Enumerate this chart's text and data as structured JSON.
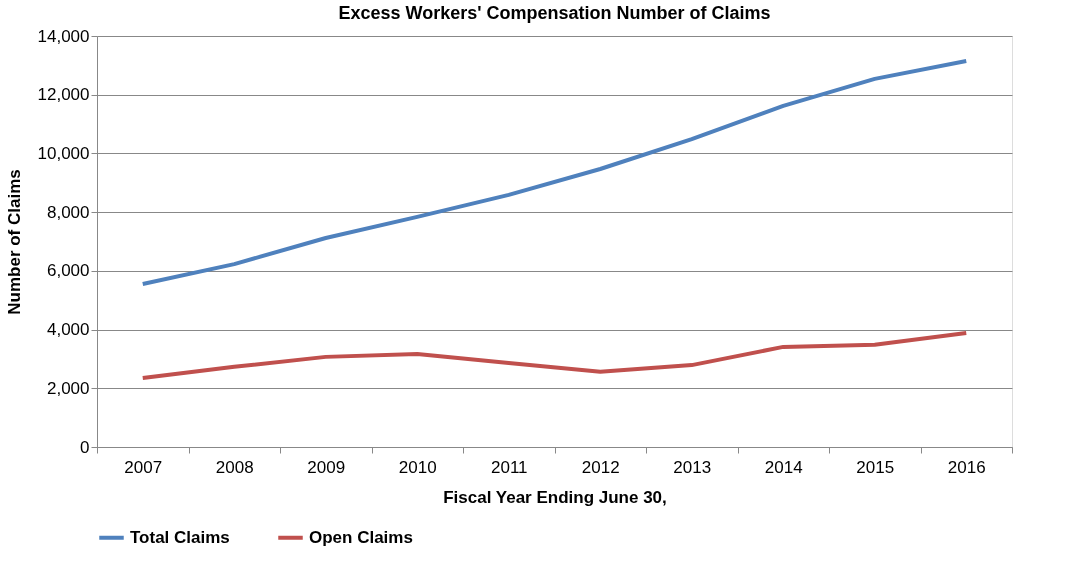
{
  "chart_data": {
    "type": "line",
    "title": "Excess Workers' Compensation Number of Claims",
    "xlabel": "Fiscal Year Ending June 30,",
    "ylabel": "Number of Claims",
    "categories": [
      "2007",
      "2008",
      "2009",
      "2010",
      "2011",
      "2012",
      "2013",
      "2014",
      "2015",
      "2016"
    ],
    "series": [
      {
        "name": "Total Claims",
        "color": "#4f81bd",
        "values": [
          5550,
          6230,
          7120,
          7840,
          8590,
          9470,
          10490,
          11620,
          12540,
          13150
        ]
      },
      {
        "name": "Open Claims",
        "color": "#c0504d",
        "values": [
          2350,
          2730,
          3070,
          3170,
          2860,
          2560,
          2790,
          3410,
          3480,
          3880
        ]
      }
    ],
    "ylim": [
      0,
      14000
    ],
    "yticks": [
      0,
      {
        "value": 2000,
        "label": "2,000"
      },
      {
        "value": 4000,
        "label": "4,000"
      },
      {
        "value": 6000,
        "label": "6,000"
      },
      {
        "value": 8000,
        "label": "8,000"
      },
      {
        "value": 10000,
        "label": "10,000"
      },
      {
        "value": 12000,
        "label": "12,000"
      },
      {
        "value": 14000,
        "label": "14,000"
      }
    ],
    "grid": "y",
    "legend": "bottom",
    "marker": "none",
    "line_style": "solid"
  }
}
